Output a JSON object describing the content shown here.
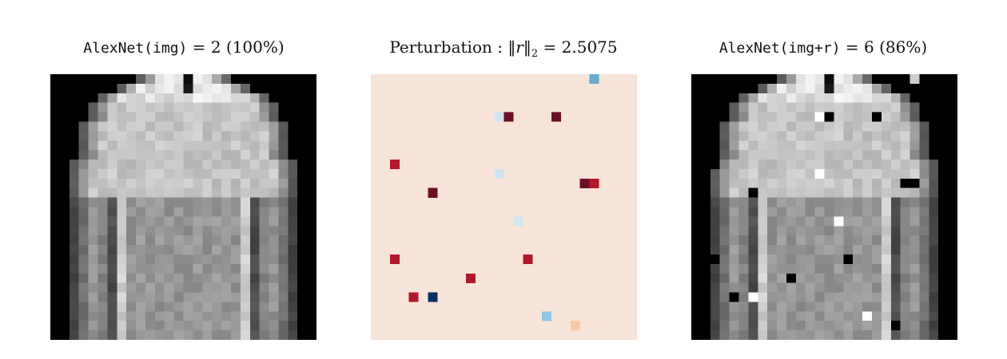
{
  "titles": {
    "left": {
      "model": "AlexNet(img)",
      "eq": " = 2 ",
      "conf": "(100%)"
    },
    "middle": {
      "label": "Perturbation : ",
      "norm": "‖r‖",
      "sub": "2",
      "value": " = 2.5075"
    },
    "right": {
      "model": "AlexNet(img+r)",
      "eq": " = 6 ",
      "conf": "(86%)"
    }
  },
  "colors": {
    "perturb_bg": "#f7e4d8",
    "dark_red": "#6b0e23",
    "red": "#b2182b",
    "pale_blue": "#d1e5f0",
    "light_blue": "#92c5de",
    "mid_blue": "#67a9cf",
    "navy": "#053061",
    "peach": "#f9c9a8"
  }
}
